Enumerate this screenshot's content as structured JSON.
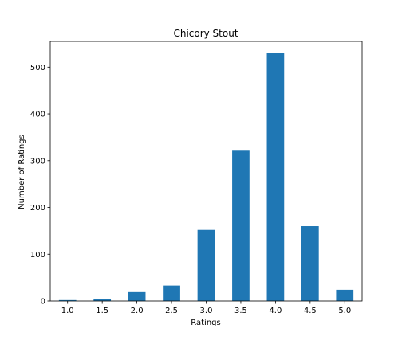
{
  "chart_data": {
    "type": "bar",
    "title": "Chicory Stout",
    "xlabel": "Ratings",
    "ylabel": "Number of Ratings",
    "categories": [
      "1.0",
      "1.5",
      "2.0",
      "2.5",
      "3.0",
      "3.5",
      "4.0",
      "4.5",
      "5.0"
    ],
    "values": [
      2,
      4,
      19,
      33,
      152,
      323,
      530,
      160,
      24
    ],
    "ylim": [
      0,
      555
    ],
    "yticks": [
      0,
      100,
      200,
      300,
      400,
      500
    ],
    "grid": false,
    "legend": "none",
    "bar_color": "#1f77b4"
  }
}
